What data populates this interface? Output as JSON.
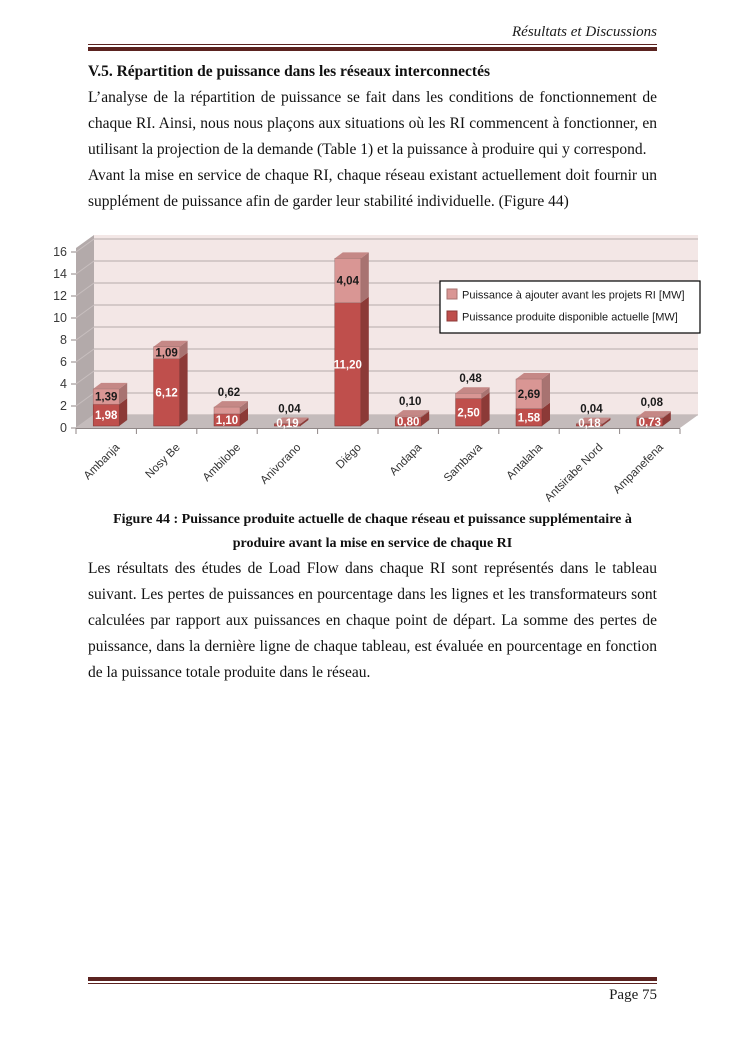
{
  "header": {
    "running_title": "Résultats et Discussions"
  },
  "section": {
    "heading": "V.5. Répartition de puissance dans les réseaux interconnectés"
  },
  "paragraphs": {
    "p1": "L’analyse de la répartition de puissance se fait dans les conditions de fonctionnement de chaque RI. Ainsi, nous nous plaçons aux situations où les RI commencent à fonctionner, en utilisant la projection de la demande (Table 1) et la puissance à produire qui y correspond.",
    "p2": "Avant la mise en service de chaque RI, chaque réseau existant actuellement doit fournir un supplément de puissance afin de garder leur stabilité individuelle. (Figure 44)",
    "p3": "Les résultats des études de Load Flow dans chaque RI sont représentés dans le tableau suivant. Les pertes de puissances en pourcentage dans les lignes et les transformateurs sont calculées par rapport aux puissances en chaque point de départ. La somme des pertes de puissance, dans la dernière ligne de chaque tableau, est évaluée en pourcentage en fonction de la puissance totale produite dans le réseau."
  },
  "figure": {
    "caption": "Figure 44 : Puissance produite actuelle de chaque réseau et puissance supplémentaire à produire avant la mise en service de chaque RI"
  },
  "footer": {
    "page_label": "Page 75"
  },
  "chart_data": {
    "type": "bar",
    "stacked": true,
    "projection": "3d",
    "title": "",
    "xlabel": "",
    "ylabel": "",
    "categories": [
      "Ambanja",
      "Nosy Be",
      "Ambilobe",
      "Anivorano",
      "Diégo",
      "Andapa",
      "Sambava",
      "Antalaha",
      "Antsirabe Nord",
      "Ampanefena"
    ],
    "series": [
      {
        "name": "Puissance produite disponible actuelle [MW]",
        "values": [
          1.98,
          6.12,
          1.1,
          0.19,
          11.2,
          0.8,
          2.5,
          1.58,
          0.18,
          0.73
        ],
        "labels": [
          "1,98",
          "6,12",
          "1,10",
          "0,19",
          "11,20",
          "0,80",
          "2,50",
          "1,58",
          "0,18",
          "0,73"
        ],
        "color": "#bf4f4c",
        "color_side": "#8c3a37",
        "color_top": "#a5423f",
        "label_color": "#ffffff"
      },
      {
        "name": "Puissance à ajouter avant les projets RI [MW]",
        "values": [
          1.39,
          1.09,
          0.62,
          0.04,
          4.04,
          0.1,
          0.48,
          2.69,
          0.04,
          0.08
        ],
        "labels": [
          "1,39",
          "1,09",
          "0,62",
          "0,04",
          "4,04",
          "0,10",
          "0,48",
          "2,69",
          "0,04",
          "0,08"
        ],
        "color": "#d99694",
        "color_side": "#a87371",
        "color_top": "#c58886",
        "label_color": "#1a1a1a"
      }
    ],
    "ylim": [
      0,
      16
    ],
    "ytick_step": 2,
    "yticks": [
      0,
      2,
      4,
      6,
      8,
      10,
      12,
      14,
      16
    ],
    "grid": true,
    "legend": [
      "Puissance à ajouter avant les projets RI [MW]",
      "Puissance produite disponible actuelle [MW]"
    ],
    "legend_position": "upper-right-inside",
    "colors": {
      "plot_back_wall": "#f3e7e6",
      "side_wall": "#b3aaaa",
      "floor": "#c4bbbb",
      "gridline": "#b5abab",
      "axis_text": "#3a3a3a"
    }
  }
}
